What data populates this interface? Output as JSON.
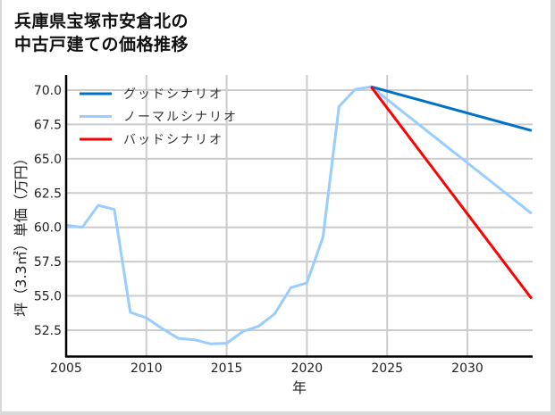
{
  "title": {
    "line1": "兵庫県宝塚市安倉北の",
    "line2": "中古戸建ての価格推移"
  },
  "chart_data": {
    "type": "line",
    "title": "兵庫県宝塚市安倉北の中古戸建ての価格推移",
    "xlabel": "年",
    "ylabel": "坪（3.3㎡）単価（万円）",
    "xlim": [
      2005,
      2034
    ],
    "ylim": [
      50.6,
      70.6
    ],
    "x_ticks": [
      "2005",
      "2010",
      "2015",
      "2020",
      "2025",
      "2030"
    ],
    "y_ticks": [
      "52.5",
      "55.0",
      "57.5",
      "60.0",
      "62.5",
      "65.0",
      "67.5",
      "70.0"
    ],
    "grid": true,
    "legend_position": "upper left",
    "series": [
      {
        "name": "グッドシナリオ",
        "color": "#0072c6",
        "x": [
          2024,
          2034
        ],
        "values": [
          70.25,
          67.05
        ]
      },
      {
        "name": "ノーマルシナリオ",
        "color": "#99ccff",
        "x": [
          2005,
          2006,
          2007,
          2008,
          2009,
          2010,
          2011,
          2012,
          2013,
          2014,
          2015,
          2016,
          2017,
          2018,
          2019,
          2020,
          2021,
          2022,
          2023,
          2024,
          2034
        ],
        "values": [
          60.15,
          60.0,
          61.6,
          61.3,
          53.8,
          53.4,
          52.6,
          51.9,
          51.8,
          51.5,
          51.55,
          52.4,
          52.8,
          53.7,
          55.6,
          55.95,
          59.3,
          68.8,
          70.05,
          70.25,
          61.0
        ]
      },
      {
        "name": "バッドシナリオ",
        "color": "#ff0000",
        "x": [
          2024,
          2034
        ],
        "values": [
          70.25,
          54.8
        ]
      }
    ]
  }
}
